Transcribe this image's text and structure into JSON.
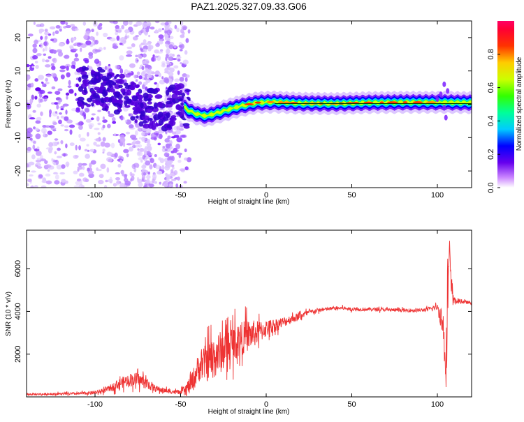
{
  "title": "PAZ1.2025.327.09.33.G06",
  "chart_data": [
    {
      "type": "heatmap",
      "name": "spectrogram",
      "xlabel": "Height of straight line (km)",
      "ylabel": "Frequency (Hz)",
      "xlim": [
        -140,
        120
      ],
      "ylim": [
        -25,
        25
      ],
      "xticks": [
        -100,
        -50,
        0,
        50,
        100
      ],
      "yticks": [
        -20,
        -10,
        0,
        10,
        20
      ],
      "xtick_labels": [
        "-100",
        "-50",
        "0",
        "50",
        "100"
      ],
      "ytick_labels": [
        "-20",
        "-10",
        "0",
        "10",
        "20"
      ],
      "colorbar": {
        "label": "Normalized spectral amplitude",
        "range": [
          0,
          1
        ],
        "ticks": [
          0.0,
          0.2,
          0.4,
          0.6,
          0.8
        ],
        "tick_labels": [
          "0.0",
          "0.2",
          "0.4",
          "0.6",
          "0.8"
        ]
      },
      "ridge": [
        {
          "x": -100,
          "y": 5
        },
        {
          "x": -90,
          "y": 4
        },
        {
          "x": -80,
          "y": 2
        },
        {
          "x": -70,
          "y": -1
        },
        {
          "x": -60,
          "y": -2
        },
        {
          "x": -50,
          "y": 0
        },
        {
          "x": -45,
          "y": -2
        },
        {
          "x": -40,
          "y": -3
        },
        {
          "x": -35,
          "y": -3.5
        },
        {
          "x": -25,
          "y": -2
        },
        {
          "x": -15,
          "y": -0.5
        },
        {
          "x": -5,
          "y": 0.5
        },
        {
          "x": 5,
          "y": 0.7
        },
        {
          "x": 20,
          "y": 0.3
        },
        {
          "x": 40,
          "y": 0.2
        },
        {
          "x": 60,
          "y": 0.5
        },
        {
          "x": 80,
          "y": 0.6
        },
        {
          "x": 100,
          "y": 0.6
        },
        {
          "x": 120,
          "y": 0.5
        }
      ]
    },
    {
      "type": "line",
      "name": "snr",
      "xlabel": "Height of straight line (km)",
      "ylabel": "SNR (10 * v/v)",
      "xlim": [
        -140,
        120
      ],
      "ylim": [
        0,
        7800
      ],
      "xticks": [
        -100,
        -50,
        0,
        50,
        100
      ],
      "yticks": [
        2000,
        4000,
        6000
      ],
      "xtick_labels": [
        "-100",
        "-50",
        "0",
        "50",
        "100"
      ],
      "ytick_labels": [
        "2000",
        "4000",
        "6000"
      ],
      "color": "#ee3333",
      "series": [
        {
          "name": "SNR",
          "x": [
            -140,
            -130,
            -120,
            -110,
            -100,
            -95,
            -90,
            -85,
            -80,
            -75,
            -70,
            -65,
            -60,
            -55,
            -50,
            -45,
            -42,
            -40,
            -38,
            -35,
            -30,
            -25,
            -20,
            -15,
            -10,
            -5,
            0,
            5,
            10,
            15,
            20,
            25,
            30,
            35,
            40,
            45,
            50,
            60,
            70,
            80,
            90,
            95,
            100,
            102,
            104,
            105,
            106,
            107,
            108,
            110,
            115,
            120
          ],
          "y": [
            120,
            130,
            140,
            150,
            200,
            280,
            450,
            650,
            800,
            820,
            650,
            400,
            300,
            250,
            200,
            500,
            900,
            1300,
            1500,
            1600,
            1900,
            2200,
            2500,
            2700,
            2900,
            3000,
            3200,
            3350,
            3500,
            3650,
            3800,
            3950,
            4050,
            4100,
            4150,
            4150,
            4100,
            4100,
            4080,
            4050,
            4050,
            4100,
            4200,
            3800,
            3000,
            1500,
            4500,
            6800,
            5200,
            4500,
            4450,
            4400
          ],
          "noise": [
            60,
            60,
            70,
            80,
            100,
            130,
            220,
            300,
            380,
            400,
            350,
            200,
            150,
            120,
            110,
            500,
            700,
            800,
            900,
            1100,
            1300,
            1200,
            1100,
            1000,
            900,
            700,
            500,
            400,
            300,
            250,
            200,
            150,
            120,
            110,
            100,
            100,
            100,
            100,
            100,
            100,
            100,
            120,
            180,
            700,
            1200,
            1500,
            1800,
            1200,
            800,
            200,
            100,
            100
          ]
        }
      ]
    }
  ]
}
